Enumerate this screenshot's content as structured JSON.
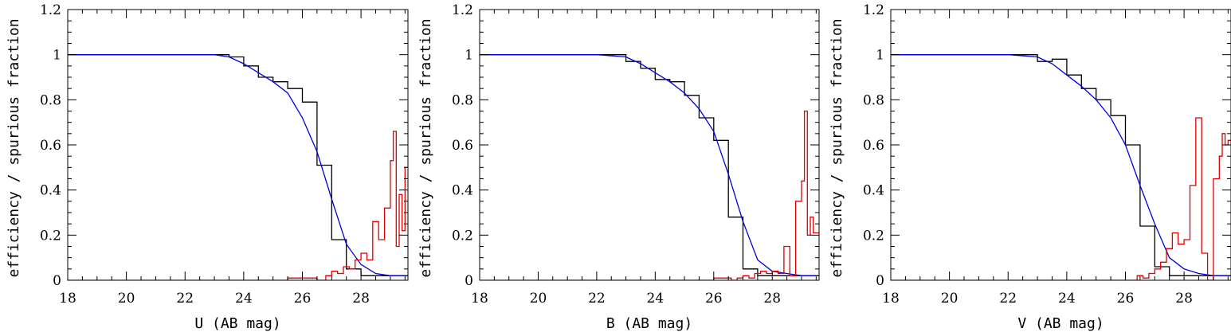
{
  "colors": {
    "efficiency_hist": "#000000",
    "spurious_hist": "#e00000",
    "efficiency_fit": "#0000dd",
    "axes": "#000000"
  },
  "chart_data": [
    {
      "type": "line",
      "xlabel": "U (AB mag)",
      "ylabel": "efficiency / spurious fraction",
      "xlim": [
        18,
        29.6
      ],
      "ylim": [
        0,
        1.2
      ],
      "xticks": [
        "18",
        "20",
        "22",
        "24",
        "26",
        "28"
      ],
      "yticks": [
        "0",
        "0.2",
        "0.4",
        "0.6",
        "0.8",
        "1",
        "1.2"
      ],
      "grid": false,
      "legend": "none",
      "series": [
        {
          "style": "step",
          "color": "#000000",
          "x": [
            18.0,
            23.0,
            23.5,
            24.0,
            24.5,
            25.0,
            25.5,
            26.0,
            26.5,
            27.0,
            27.5,
            28.0,
            28.5,
            29.0,
            29.6
          ],
          "y": [
            1.0,
            1.0,
            0.99,
            0.95,
            0.9,
            0.88,
            0.85,
            0.79,
            0.51,
            0.18,
            0.05,
            0.02,
            0.02,
            0.02,
            0.02
          ]
        },
        {
          "style": "curve",
          "color": "#0000dd",
          "x": [
            18.0,
            22.0,
            23.0,
            23.5,
            24.0,
            24.5,
            25.0,
            25.5,
            26.0,
            26.5,
            27.0,
            27.5,
            28.0,
            28.5,
            29.0,
            29.5
          ],
          "y": [
            1.0,
            1.0,
            1.0,
            0.99,
            0.96,
            0.92,
            0.88,
            0.83,
            0.72,
            0.57,
            0.36,
            0.16,
            0.07,
            0.03,
            0.02,
            0.02
          ]
        },
        {
          "style": "step",
          "color": "#e00000",
          "x": [
            18.0,
            25.3,
            25.5,
            26.5,
            26.8,
            27.0,
            27.2,
            27.4,
            27.6,
            27.8,
            28.0,
            28.2,
            28.4,
            28.6,
            28.8,
            29.0,
            29.1,
            29.2,
            29.3,
            29.4,
            29.5,
            29.6
          ],
          "y": [
            0.0,
            0.0,
            0.01,
            0.0,
            0.02,
            0.04,
            0.03,
            0.06,
            0.05,
            0.09,
            0.12,
            0.09,
            0.26,
            0.18,
            0.32,
            0.53,
            0.66,
            0.15,
            0.38,
            0.22,
            0.5,
            0.5
          ]
        }
      ]
    },
    {
      "type": "line",
      "xlabel": "B (AB mag)",
      "ylabel": "efficiency / spurious fraction",
      "xlim": [
        18,
        29.6
      ],
      "ylim": [
        0,
        1.2
      ],
      "xticks": [
        "18",
        "20",
        "22",
        "24",
        "26",
        "28"
      ],
      "yticks": [
        "0",
        "0.2",
        "0.4",
        "0.6",
        "0.8",
        "1",
        "1.2"
      ],
      "grid": false,
      "legend": "none",
      "series": [
        {
          "style": "step",
          "color": "#000000",
          "x": [
            18.0,
            22.7,
            23.0,
            23.5,
            24.0,
            24.5,
            25.0,
            25.5,
            26.0,
            26.5,
            27.0,
            27.5,
            28.0,
            28.5,
            29.0,
            29.6
          ],
          "y": [
            1.0,
            1.0,
            0.97,
            0.94,
            0.89,
            0.88,
            0.82,
            0.72,
            0.62,
            0.28,
            0.05,
            0.02,
            0.02,
            0.02,
            0.02,
            0.02
          ]
        },
        {
          "style": "curve",
          "color": "#0000dd",
          "x": [
            18.0,
            22.0,
            23.0,
            23.5,
            24.0,
            24.5,
            25.0,
            25.5,
            26.0,
            26.5,
            27.0,
            27.5,
            28.0,
            28.5,
            29.0,
            29.5
          ],
          "y": [
            1.0,
            1.0,
            0.99,
            0.96,
            0.92,
            0.88,
            0.83,
            0.76,
            0.66,
            0.47,
            0.26,
            0.09,
            0.04,
            0.03,
            0.02,
            0.02
          ]
        },
        {
          "style": "step",
          "color": "#e00000",
          "x": [
            18.0,
            25.9,
            26.0,
            26.6,
            26.8,
            27.0,
            27.2,
            27.4,
            27.6,
            27.8,
            28.0,
            28.2,
            28.4,
            28.6,
            28.8,
            29.0,
            29.1,
            29.2,
            29.3,
            29.4,
            29.6
          ],
          "y": [
            0.0,
            0.0,
            0.01,
            0.0,
            0.01,
            0.02,
            0.01,
            0.03,
            0.04,
            0.03,
            0.04,
            0.03,
            0.15,
            0.02,
            0.35,
            0.44,
            0.75,
            0.2,
            0.28,
            0.21,
            0.21
          ]
        }
      ]
    },
    {
      "type": "line",
      "xlabel": "V (AB mag)",
      "ylabel": "efficiency / spurious fraction",
      "xlim": [
        18,
        29.6
      ],
      "ylim": [
        0,
        1.2
      ],
      "xticks": [
        "18",
        "20",
        "22",
        "24",
        "26",
        "28"
      ],
      "yticks": [
        "0",
        "0.2",
        "0.4",
        "0.6",
        "0.8",
        "1",
        "1.2"
      ],
      "grid": false,
      "legend": "none",
      "series": [
        {
          "style": "step",
          "color": "#000000",
          "x": [
            18.0,
            22.5,
            23.0,
            23.5,
            24.0,
            24.5,
            25.0,
            25.5,
            26.0,
            26.5,
            27.0,
            27.5,
            28.0,
            28.5,
            29.0,
            29.6
          ],
          "y": [
            1.0,
            1.0,
            0.97,
            0.98,
            0.91,
            0.85,
            0.8,
            0.73,
            0.6,
            0.24,
            0.06,
            0.02,
            0.02,
            0.02,
            0.02,
            0.02
          ]
        },
        {
          "style": "curve",
          "color": "#0000dd",
          "x": [
            18.0,
            22.0,
            23.0,
            23.5,
            24.0,
            24.5,
            25.0,
            25.5,
            26.0,
            26.5,
            27.0,
            27.5,
            28.0,
            28.5,
            29.0,
            29.5
          ],
          "y": [
            1.0,
            1.0,
            0.99,
            0.96,
            0.91,
            0.86,
            0.8,
            0.72,
            0.6,
            0.42,
            0.25,
            0.1,
            0.05,
            0.03,
            0.02,
            0.02
          ]
        },
        {
          "style": "step",
          "color": "#e00000",
          "x": [
            18.0,
            26.2,
            26.4,
            26.6,
            26.8,
            27.0,
            27.2,
            27.4,
            27.6,
            27.8,
            28.0,
            28.2,
            28.4,
            28.6,
            28.8,
            29.0,
            29.2,
            29.3,
            29.4,
            29.5,
            29.6
          ],
          "y": [
            0.0,
            0.0,
            0.02,
            0.01,
            0.03,
            0.05,
            0.08,
            0.14,
            0.21,
            0.16,
            0.18,
            0.42,
            0.72,
            0.12,
            0.0,
            0.45,
            0.55,
            0.65,
            0.6,
            0.62,
            0.62
          ]
        }
      ]
    }
  ]
}
